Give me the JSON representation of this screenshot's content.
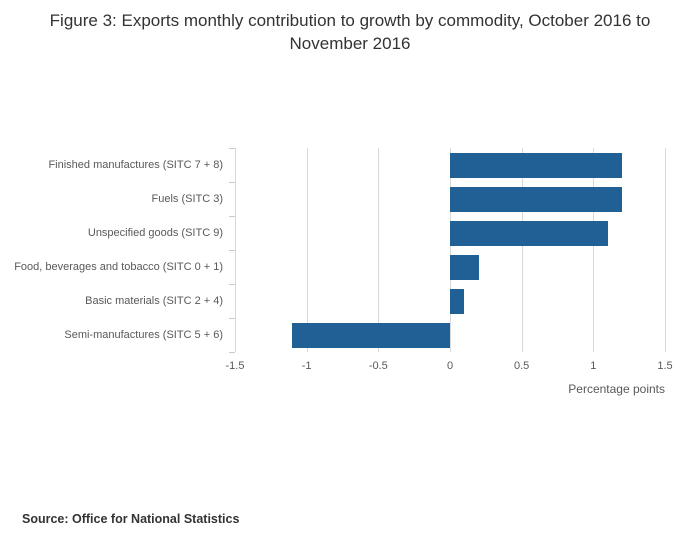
{
  "chart_data": {
    "type": "bar",
    "orientation": "horizontal",
    "title": "Figure 3: Exports monthly contribution to growth by commodity, October 2016 to November 2016",
    "categories": [
      "Finished manufactures (SITC 7 + 8)",
      "Fuels (SITC 3)",
      "Unspecified goods (SITC 9)",
      "Food, beverages and tobacco (SITC 0 + 1)",
      "Basic materials (SITC 2 + 4)",
      "Semi-manufactures (SITC 5 + 6)"
    ],
    "values": [
      1.2,
      1.2,
      1.1,
      0.2,
      0.1,
      -1.1
    ],
    "xlabel": "Percentage points",
    "xlim": [
      -1.5,
      1.5
    ],
    "xticks": [
      -1.5,
      -1,
      -0.5,
      0,
      0.5,
      1,
      1.5
    ],
    "grid": true,
    "legend": "none",
    "bar_color": "#206095"
  },
  "footer": {
    "source": "Source: Office for National Statistics"
  }
}
